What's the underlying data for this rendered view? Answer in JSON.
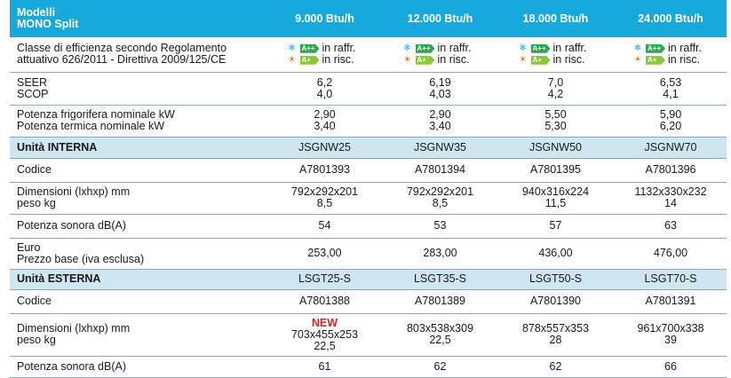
{
  "header": {
    "title_line1": "Modelli",
    "title_line2": "MONO Split",
    "models": [
      "9.000 Btu/h",
      "12.000 Btu/h",
      "18.000 Btu/h",
      "24.000 Btu/h"
    ]
  },
  "energy_class": {
    "label_line1": "Classe di efficienza secondo Regolamento",
    "label_line2": "attuativo 626/2011 - Direttiva 2009/125/CE",
    "cooling_class": "A++",
    "heating_class": "A+",
    "cooling_text": "in raffr.",
    "heating_text": "in risc.",
    "cooling_icon": "snowflake-icon",
    "heating_icon": "sun-icon",
    "cooling_color": "#2aa84a",
    "heating_color": "#8cc63f"
  },
  "rows": {
    "seer_scop": {
      "label1": "SEER",
      "label2": "SCOP",
      "values": [
        [
          "6,2",
          "4,0"
        ],
        [
          "6,19",
          "4,03"
        ],
        [
          "7,0",
          "4,2"
        ],
        [
          "6,53",
          "4,1"
        ]
      ]
    },
    "power": {
      "label1": "Potenza frigorifera nominale kW",
      "label2": "Potenza termica nominale kW",
      "values": [
        [
          "2,90",
          "3,40"
        ],
        [
          "2,90",
          "3,40"
        ],
        [
          "5,50",
          "5,30"
        ],
        [
          "5,90",
          "6,20"
        ]
      ]
    },
    "internal_unit": {
      "label": "Unità INTERNA",
      "values": [
        "JSGNW25",
        "JSGNW35",
        "JSGNW50",
        "JSGNW70"
      ]
    },
    "internal_code": {
      "label": "Codice",
      "values": [
        "A7801393",
        "A7801394",
        "A7801395",
        "A7801396"
      ]
    },
    "internal_dims": {
      "label1": "Dimensioni (lxhxp) mm",
      "label2": "peso kg",
      "values": [
        [
          "792x292x201",
          "8,5"
        ],
        [
          "792x292x201",
          "8,5"
        ],
        [
          "940x316x224",
          "11,5"
        ],
        [
          "1132x330x232",
          "14"
        ]
      ]
    },
    "internal_sound": {
      "label": "Potenza sonora dB(A)",
      "values": [
        "54",
        "53",
        "57",
        "63"
      ]
    },
    "price": {
      "label1": "Euro",
      "label2": "Prezzo base (iva esclusa)",
      "values": [
        "253,00",
        "283,00",
        "436,00",
        "476,00"
      ]
    },
    "external_unit": {
      "label": "Unità ESTERNA",
      "values": [
        "LSGT25-S",
        "LSGT35-S",
        "LSGT50-S",
        "LSGT70-S"
      ]
    },
    "external_code": {
      "label": "Codice",
      "values": [
        "A7801388",
        "A7801389",
        "A7801390",
        "A7801391"
      ]
    },
    "external_dims": {
      "label1": "Dimensioni (lxhxp) mm",
      "label2": "peso kg",
      "new_badge": "NEW",
      "new_color": "#e2231a",
      "values": [
        [
          "703x455x253",
          "22,5"
        ],
        [
          "803x538x309",
          "22,5"
        ],
        [
          "878x557x353",
          "28"
        ],
        [
          "961x700x338",
          "39"
        ]
      ]
    },
    "external_sound": {
      "label": "Potenza sonora dB(A)",
      "values": [
        "61",
        "62",
        "62",
        "66"
      ]
    }
  }
}
